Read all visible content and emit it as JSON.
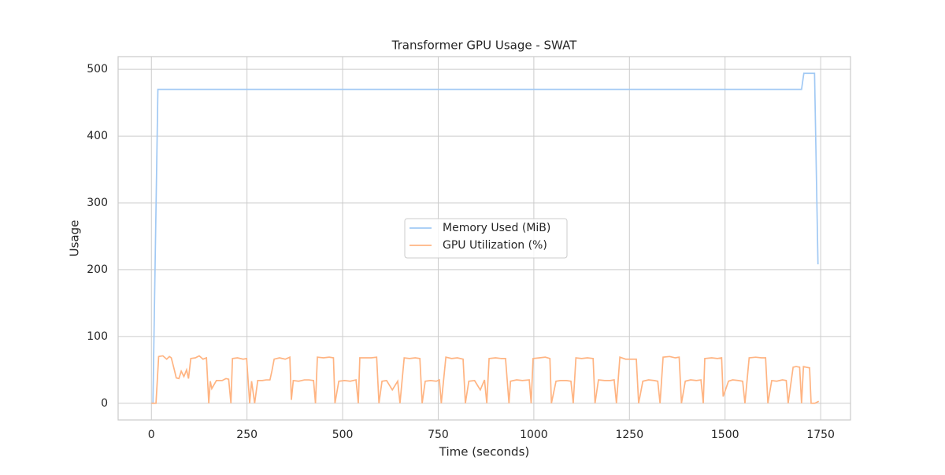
{
  "chart_data": {
    "type": "line",
    "title": "Transformer GPU Usage - SWAT",
    "xlabel": "Time (seconds)",
    "ylabel": "Usage",
    "xlim": [
      -87,
      1828
    ],
    "ylim": [
      -25,
      519
    ],
    "xticks": [
      0,
      250,
      500,
      750,
      1000,
      1250,
      1500,
      1750
    ],
    "yticks": [
      0,
      100,
      200,
      300,
      400,
      500
    ],
    "grid": true,
    "legend": "center",
    "series": [
      {
        "name": "Memory Used (MiB)",
        "color": "#a1c9f4",
        "x": [
          0,
          4,
          17,
          1700,
          1706,
          1734,
          1743
        ],
        "values": [
          0,
          0,
          470,
          470,
          494,
          494,
          208
        ]
      },
      {
        "name": "GPU Utilization (%)",
        "color": "#ffb482",
        "x": [
          0,
          8,
          12,
          19,
          30,
          40,
          47,
          52,
          60,
          65,
          72,
          78,
          85,
          92,
          97,
          103,
          115,
          125,
          135,
          144,
          150,
          154,
          158,
          170,
          185,
          195,
          202,
          208,
          212,
          225,
          240,
          249,
          257,
          262,
          270,
          278,
          290,
          300,
          310,
          315,
          321,
          335,
          350,
          362,
          366,
          371,
          385,
          400,
          412,
          424,
          429,
          434,
          450,
          465,
          476,
          480,
          490,
          505,
          520,
          535,
          541,
          545,
          560,
          575,
          589,
          595,
          603,
          615,
          630,
          644,
          650,
          661,
          675,
          690,
          702,
          708,
          716,
          730,
          745,
          753,
          758,
          770,
          785,
          800,
          815,
          821,
          830,
          845,
          860,
          871,
          877,
          883,
          900,
          915,
          926,
          935,
          939,
          955,
          970,
          988,
          993,
          998,
          1015,
          1030,
          1042,
          1046,
          1058,
          1070,
          1085,
          1097,
          1103,
          1110,
          1125,
          1140,
          1155,
          1160,
          1169,
          1185,
          1200,
          1210,
          1216,
          1225,
          1240,
          1255,
          1268,
          1274,
          1285,
          1300,
          1315,
          1324,
          1330,
          1338,
          1355,
          1370,
          1380,
          1386,
          1396,
          1410,
          1425,
          1437,
          1443,
          1447,
          1465,
          1480,
          1491,
          1495,
          1509,
          1520,
          1535,
          1546,
          1552,
          1563,
          1580,
          1595,
          1606,
          1612,
          1622,
          1635,
          1650,
          1660,
          1665,
          1678,
          1686,
          1695,
          1700,
          1705,
          1712,
          1721,
          1725,
          1735,
          1745
        ],
        "values": [
          0,
          0,
          0,
          70,
          71,
          66,
          70,
          68,
          50,
          38,
          37,
          48,
          40,
          50,
          37,
          67,
          68,
          71,
          66,
          68,
          0,
          33,
          22,
          34,
          34,
          37,
          36,
          0,
          67,
          68,
          66,
          67,
          0,
          33,
          0,
          34,
          34,
          35,
          35,
          48,
          66,
          68,
          66,
          69,
          5,
          34,
          33,
          35,
          35,
          34,
          0,
          69,
          68,
          69,
          68,
          0,
          33,
          34,
          33,
          35,
          0,
          68,
          68,
          68,
          69,
          0,
          33,
          34,
          20,
          33,
          0,
          68,
          67,
          68,
          67,
          0,
          33,
          34,
          33,
          35,
          0,
          69,
          67,
          68,
          66,
          0,
          33,
          34,
          20,
          35,
          0,
          67,
          68,
          67,
          67,
          0,
          33,
          35,
          34,
          35,
          0,
          67,
          68,
          69,
          67,
          0,
          33,
          34,
          34,
          33,
          0,
          68,
          67,
          68,
          67,
          0,
          35,
          34,
          34,
          35,
          0,
          69,
          66,
          66,
          66,
          0,
          33,
          35,
          34,
          33,
          0,
          69,
          70,
          68,
          69,
          0,
          33,
          35,
          34,
          35,
          0,
          67,
          68,
          67,
          68,
          10,
          33,
          35,
          34,
          33,
          0,
          68,
          69,
          68,
          68,
          0,
          34,
          33,
          35,
          34,
          0,
          54,
          55,
          54,
          0,
          55,
          54,
          53,
          0,
          0,
          3
        ]
      }
    ]
  }
}
